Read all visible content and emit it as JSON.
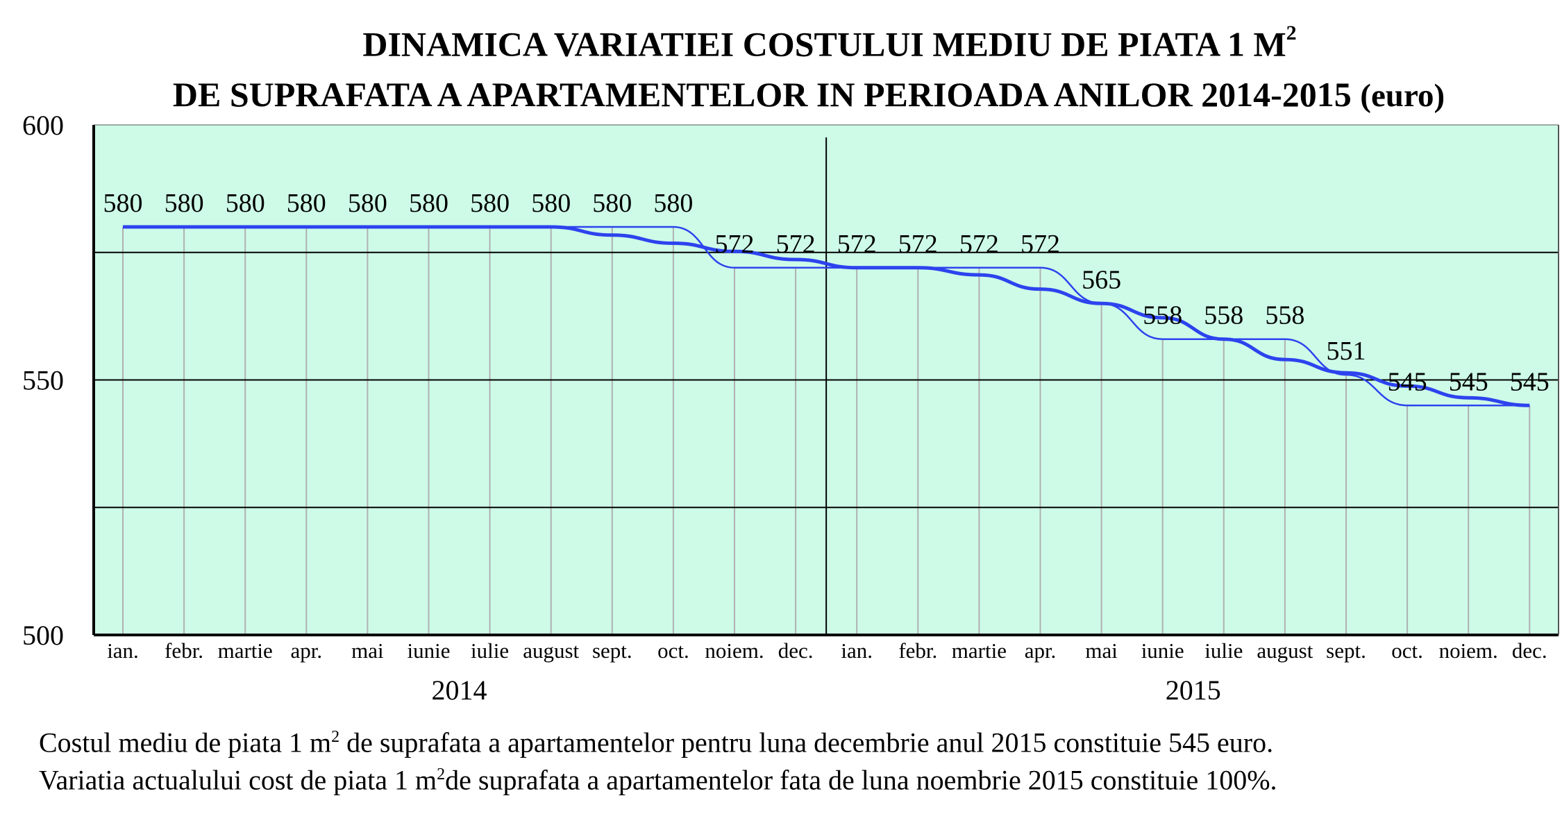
{
  "title": {
    "line1": "DINAMICA VARIATIEI COSTULUI MEDIU DE PIATA 1 M",
    "line1_sup": "2",
    "line2": "DE SUPRAFATA A APARTAMENTELOR IN PERIOADA ANILOR 2014-2015",
    "unit": "(euro)"
  },
  "notes": {
    "line1_a": "Costul mediu de piata 1 m",
    "line1_sup": "2",
    "line1_b": " de suprafata a apartamentelor pentru luna decembrie anul 2015 constituie 545 euro.",
    "line2_a": "Variatia actualului cost de piata 1 m",
    "line2_sup": "2",
    "line2_b": "de suprafata a apartamentelor fata de luna noembrie 2015 constituie 100%."
  },
  "chart_data": {
    "type": "line",
    "categories": [
      "ian.",
      "febr.",
      "martie",
      "apr.",
      "mai",
      "iunie",
      "iulie",
      "august",
      "sept.",
      "oct.",
      "noiem.",
      "dec.",
      "ian.",
      "febr.",
      "martie",
      "apr.",
      "mai",
      "iunie",
      "iulie",
      "august",
      "sept.",
      "oct.",
      "noiem.",
      "dec."
    ],
    "years": [
      "2014",
      "2015"
    ],
    "series": [
      {
        "values": [
          580,
          580,
          580,
          580,
          580,
          580,
          580,
          580,
          580,
          580,
          572,
          572,
          572,
          572,
          572,
          572,
          565,
          558,
          558,
          558,
          551,
          545,
          545,
          545
        ]
      }
    ],
    "data_labels": [
      "580",
      "580",
      "580",
      "580",
      "580",
      "580",
      "580",
      "580",
      "580",
      "580",
      "572",
      "572",
      "572",
      "572",
      "572",
      "572",
      "565",
      "558",
      "558",
      "558",
      "551",
      "545",
      "545",
      "545"
    ],
    "yticks": [
      500,
      550,
      600
    ],
    "ylim": [
      500,
      600
    ],
    "grid": "horizontal",
    "trend_line": true,
    "colors": {
      "plot_bg": "#cdfbe8",
      "line": "#2d43ee",
      "grid": "#000000",
      "month_lines": "#b0b0b0"
    }
  }
}
